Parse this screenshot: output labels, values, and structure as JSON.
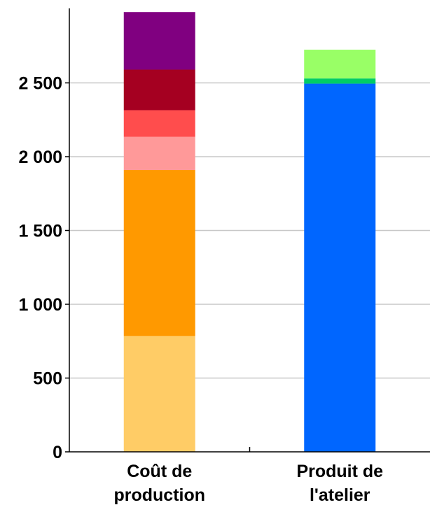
{
  "chart_data": {
    "type": "bar",
    "stacked": true,
    "categories": [
      [
        "Coût de",
        "production"
      ],
      [
        "Produit de",
        "l'atelier"
      ]
    ],
    "yticks": [
      0,
      500,
      1000,
      1500,
      2000,
      2500
    ],
    "ytick_labels": [
      "0",
      "500",
      "1 000",
      "1 500",
      "2 000",
      "2 500"
    ],
    "ylim": [
      0,
      3000
    ],
    "grid": true,
    "legend": "none",
    "stacks": [
      {
        "segments": [
          {
            "value": 785,
            "color": "#ffcc66"
          },
          {
            "value": 1125,
            "color": "#ff9900"
          },
          {
            "value": 225,
            "color": "#ff9999"
          },
          {
            "value": 180,
            "color": "#ff4d4d"
          },
          {
            "value": 275,
            "color": "#a50021"
          },
          {
            "value": 390,
            "color": "#800080"
          }
        ]
      },
      {
        "segments": [
          {
            "value": 2495,
            "color": "#0066ff"
          },
          {
            "value": 35,
            "color": "#00cc66"
          },
          {
            "value": 195,
            "color": "#99ff66"
          }
        ]
      }
    ]
  }
}
